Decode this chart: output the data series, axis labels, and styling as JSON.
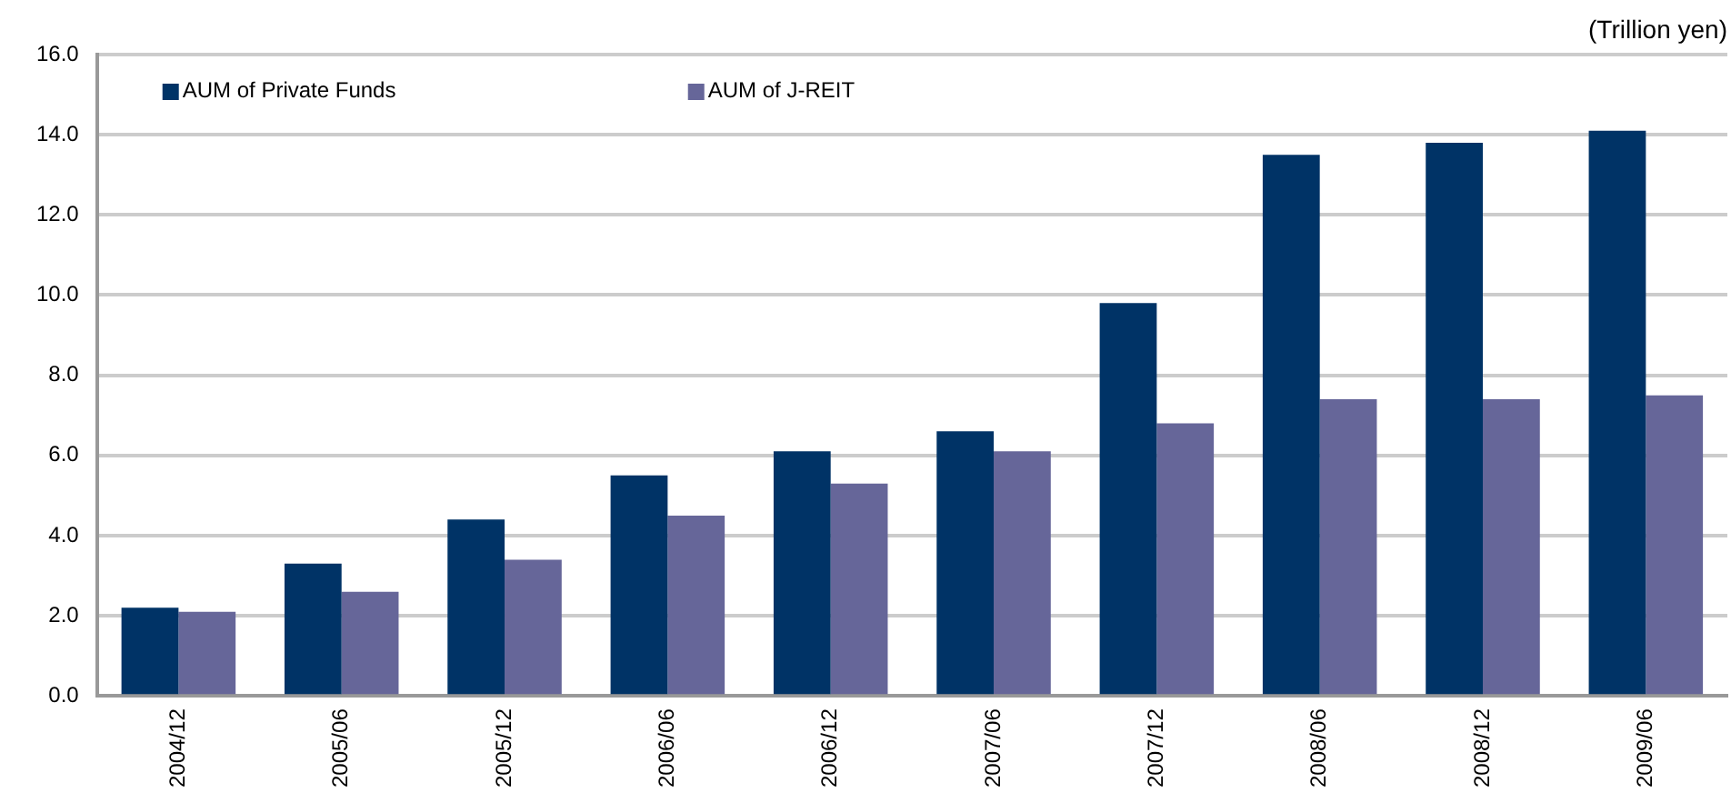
{
  "chart_data": {
    "type": "bar",
    "ylabel": "(Trillion yen)",
    "categories": [
      "2004/12",
      "2005/06",
      "2005/12",
      "2006/06",
      "2006/12",
      "2007/06",
      "2007/12",
      "2008/06",
      "2008/12",
      "2009/06"
    ],
    "series": [
      {
        "name": "AUM of Private Funds",
        "color": "#003366",
        "values": [
          2.2,
          3.3,
          4.4,
          5.5,
          6.1,
          6.6,
          9.8,
          13.5,
          13.8,
          14.1
        ]
      },
      {
        "name": "AUM of J-REIT",
        "color": "#666699",
        "values": [
          2.1,
          2.6,
          3.4,
          4.5,
          5.3,
          6.1,
          6.8,
          7.4,
          7.4,
          7.5
        ]
      }
    ],
    "ylim": [
      0,
      16
    ],
    "yticks": [
      {
        "value": 0,
        "label": "0.0"
      },
      {
        "value": 2,
        "label": "2.0"
      },
      {
        "value": 4,
        "label": "4.0"
      },
      {
        "value": 6,
        "label": "6.0"
      },
      {
        "value": 8,
        "label": "8.0"
      },
      {
        "value": 10,
        "label": "10.0"
      },
      {
        "value": 12,
        "label": "12.0"
      },
      {
        "value": 14,
        "label": "14.0"
      },
      {
        "value": 16,
        "label": "16.0"
      }
    ],
    "grid": "y",
    "legend": "top left"
  }
}
